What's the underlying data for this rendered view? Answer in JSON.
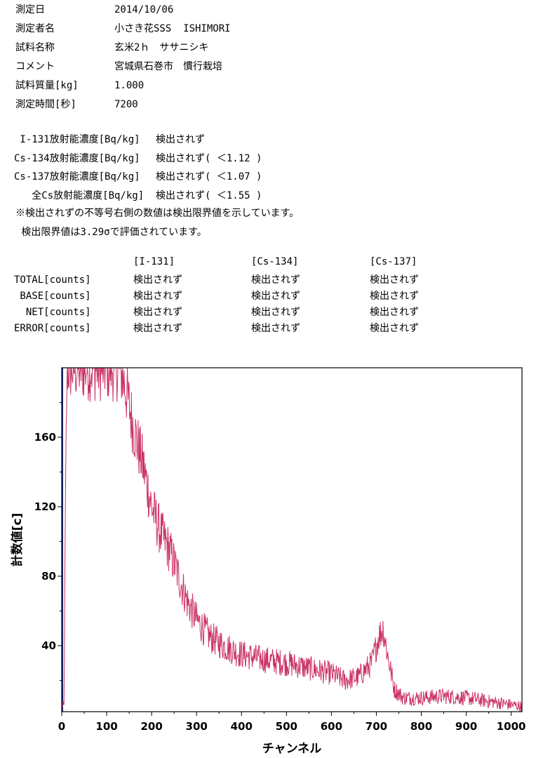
{
  "meta": [
    {
      "label": "測定日",
      "value": "2014/10/06"
    },
    {
      "label": "測定者名",
      "value": "小さき花SSS  ISHIMORI"
    },
    {
      "label": "試料名称",
      "value": "玄米2ｈ　ササニシキ"
    },
    {
      "label": "コメント",
      "value": "宮城県石巻市　慣行栽培"
    },
    {
      "label": "試料質量[kg]",
      "value": "1.000"
    },
    {
      "label": "測定時間[秒]",
      "value": "7200"
    }
  ],
  "concentrations": [
    {
      "label": " I-131放射能濃度[Bq/kg]",
      "value": "検出されず"
    },
    {
      "label": "Cs-134放射能濃度[Bq/kg]",
      "value": "検出されず( ＜1.12 )"
    },
    {
      "label": "Cs-137放射能濃度[Bq/kg]",
      "value": "検出されず( ＜1.07 )"
    },
    {
      "label": "   全Cs放射能濃度[Bq/kg]",
      "value": "検出されず( ＜1.55 )"
    }
  ],
  "notes": [
    "※検出されずの不等号右側の数値は検出限界値を示しています。",
    " 検出限界値は3.29σで評価されています。"
  ],
  "counts_table": {
    "headers": [
      "[I-131]",
      "[Cs-134]",
      "[Cs-137]"
    ],
    "rows": [
      {
        "label": "TOTAL[counts]",
        "values": [
          "検出されず",
          "検出されず",
          "検出されず"
        ]
      },
      {
        "label": " BASE[counts]",
        "values": [
          "検出されず",
          "検出されず",
          "検出されず"
        ]
      },
      {
        "label": "  NET[counts]",
        "values": [
          "検出されず",
          "検出されず",
          "検出されず"
        ]
      },
      {
        "label": "ERROR[counts]",
        "values": [
          "検出されず",
          "検出されず",
          "検出されず"
        ]
      }
    ]
  },
  "chart_data": {
    "type": "line",
    "xlabel": "チャンネル",
    "ylabel": "計数値[c]",
    "xlim": [
      0,
      1024
    ],
    "ylim": [
      2,
      200
    ],
    "x_ticks": [
      0,
      100,
      200,
      300,
      400,
      500,
      600,
      700,
      800,
      900,
      1000
    ],
    "y_ticks": [
      40,
      80,
      120,
      160
    ],
    "grid": false,
    "line_color": "#cc3366",
    "series": [
      {
        "x": [
          5,
          8,
          10,
          12,
          15,
          130,
          145,
          160,
          180,
          200,
          220,
          240,
          260,
          280,
          300,
          330,
          360,
          400,
          450,
          500,
          550,
          600,
          630,
          660,
          690,
          705,
          715,
          725,
          740,
          760,
          800,
          850,
          900,
          950,
          1000,
          1024
        ],
        "y": [
          5,
          110,
          160,
          200,
          200,
          200,
          185,
          165,
          145,
          120,
          105,
          95,
          80,
          65,
          55,
          45,
          40,
          35,
          32,
          30,
          27,
          24,
          20,
          22,
          30,
          45,
          50,
          35,
          15,
          10,
          10,
          11,
          10,
          8,
          6,
          5
        ]
      }
    ]
  }
}
